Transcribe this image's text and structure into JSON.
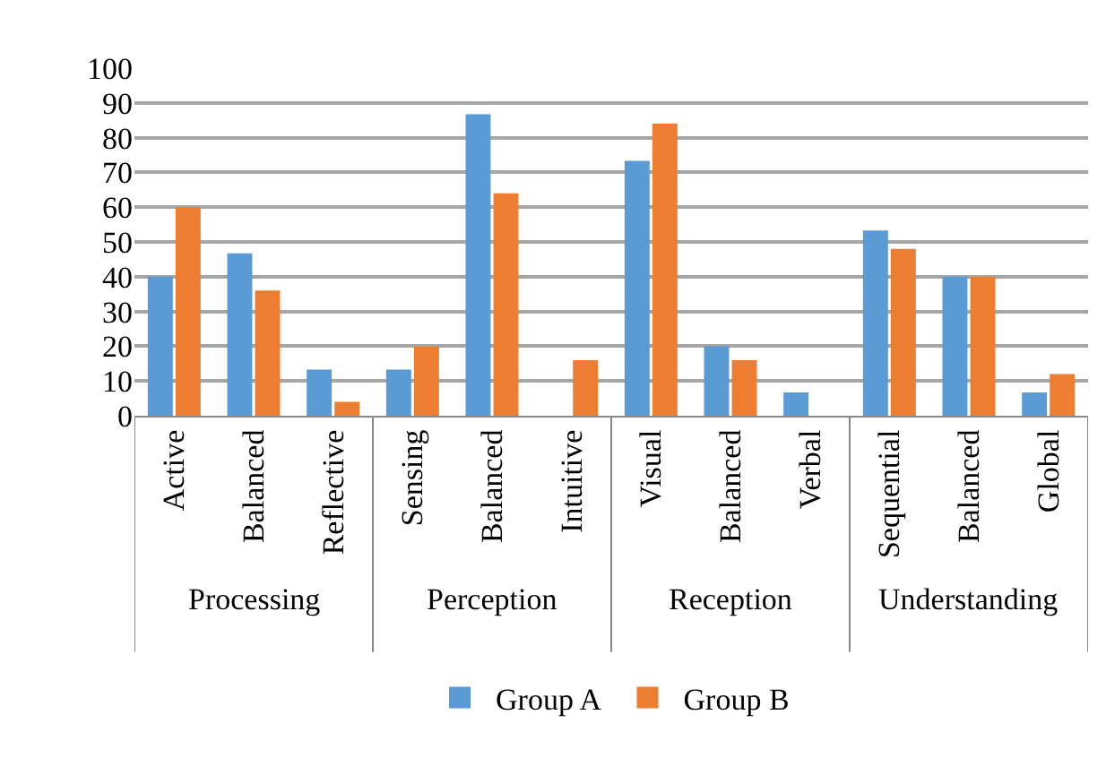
{
  "chart_data": {
    "type": "bar",
    "categories": [
      "Active",
      "Balanced",
      "Reflective",
      "Sensing",
      "Balanced",
      "Intuitive",
      "Visual",
      "Balanced",
      "Verbal",
      "Sequential",
      "Balanced",
      "Global"
    ],
    "series": [
      {
        "name": "Group A",
        "color": "#5b9bd5",
        "values": [
          40,
          46.7,
          13.3,
          13.3,
          86.7,
          0,
          73.3,
          20,
          6.7,
          53.3,
          40,
          6.7
        ]
      },
      {
        "name": "Group B",
        "color": "#ed7d31",
        "values": [
          60,
          36,
          4,
          20,
          64,
          16,
          84,
          16,
          0,
          48,
          40,
          12
        ]
      }
    ],
    "annotations": [
      "Processing",
      "Perception",
      "Reception",
      "Understanding"
    ],
    "ylim": [
      0,
      100
    ],
    "yticks": [
      0,
      10,
      20,
      30,
      40,
      50,
      60,
      70,
      80,
      90,
      100
    ],
    "grid": "y",
    "legend": "bottom"
  }
}
